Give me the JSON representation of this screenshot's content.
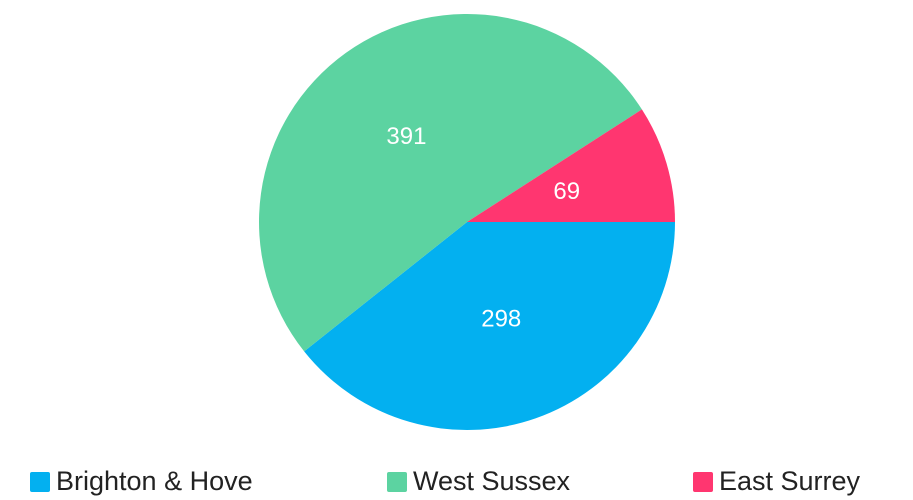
{
  "chart_data": {
    "type": "pie",
    "categories": [
      "Brighton & Hove",
      "West Sussex",
      "East Surrey"
    ],
    "values": [
      298,
      391,
      69
    ],
    "colors": [
      "#03b0f0",
      "#5cd3a1",
      "#ff3670"
    ],
    "legend": "bottom"
  }
}
